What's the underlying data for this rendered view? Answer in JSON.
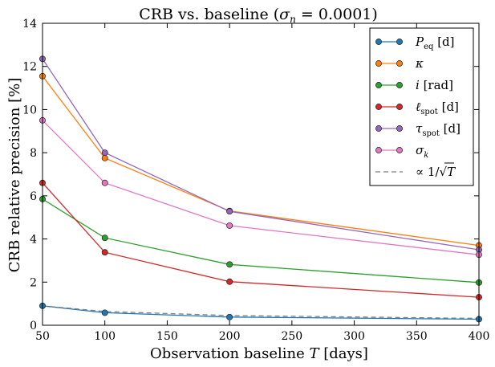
{
  "chart_data": {
    "type": "line",
    "title": "CRB vs. baseline (σ_n = 0.0001)",
    "xlabel": "Observation baseline T [days]",
    "ylabel": "CRB relative precision [%]",
    "xlim": [
      50,
      400
    ],
    "ylim": [
      0,
      14
    ],
    "xticks": [
      50,
      100,
      150,
      200,
      250,
      300,
      350,
      400
    ],
    "yticks": [
      0,
      2,
      4,
      6,
      8,
      10,
      12,
      14
    ],
    "grid": false,
    "legend_position": "top-right",
    "x": [
      50,
      100,
      200,
      400
    ],
    "series": [
      {
        "name": "P_eq [d]",
        "color": "#1f77b4",
        "marker": "o",
        "values": [
          0.9,
          0.58,
          0.38,
          0.28
        ]
      },
      {
        "name": "κ",
        "color": "#ff7f0e",
        "marker": "o",
        "values": [
          11.55,
          7.75,
          5.3,
          3.7
        ]
      },
      {
        "name": "i [rad]",
        "color": "#2ca02c",
        "marker": "o",
        "values": [
          5.85,
          4.05,
          2.82,
          1.98
        ]
      },
      {
        "name": "ℓ_spot [d]",
        "color": "#d62728",
        "marker": "o",
        "values": [
          6.6,
          3.38,
          2.02,
          1.3
        ]
      },
      {
        "name": "τ_spot [d]",
        "color": "#9467bd",
        "marker": "o",
        "values": [
          12.35,
          8.0,
          5.28,
          3.5
        ]
      },
      {
        "name": "σ_k",
        "color": "#e377c2",
        "marker": "o",
        "values": [
          9.5,
          6.6,
          4.62,
          3.27
        ]
      },
      {
        "name": "∝ 1/√T",
        "color": "#7f7f7f",
        "marker": "none",
        "dashed": true,
        "values": [
          0.9,
          0.636,
          0.45,
          0.318
        ]
      }
    ]
  },
  "title_parts": {
    "prefix": "CRB vs. baseline (",
    "sigma": "σ",
    "sub": "n",
    "suffix": " = 0.0001)"
  },
  "xlabel_parts": {
    "prefix": "Observation baseline ",
    "var": "T",
    "suffix": " [days]"
  },
  "legend_labels": [
    {
      "main": "P",
      "sub": "eq",
      "rest": " [d]"
    },
    {
      "main": "κ",
      "sub": "",
      "rest": ""
    },
    {
      "main": "i",
      "sub": "",
      "rest": " [rad]"
    },
    {
      "main": "ℓ",
      "sub": "spot",
      "rest": " [d]"
    },
    {
      "main": "τ",
      "sub": "spot",
      "rest": " [d]"
    },
    {
      "main": "σ",
      "sub": "k",
      "rest": ""
    },
    {
      "main": "∝ 1/√",
      "sub": "",
      "rest": "T"
    }
  ]
}
